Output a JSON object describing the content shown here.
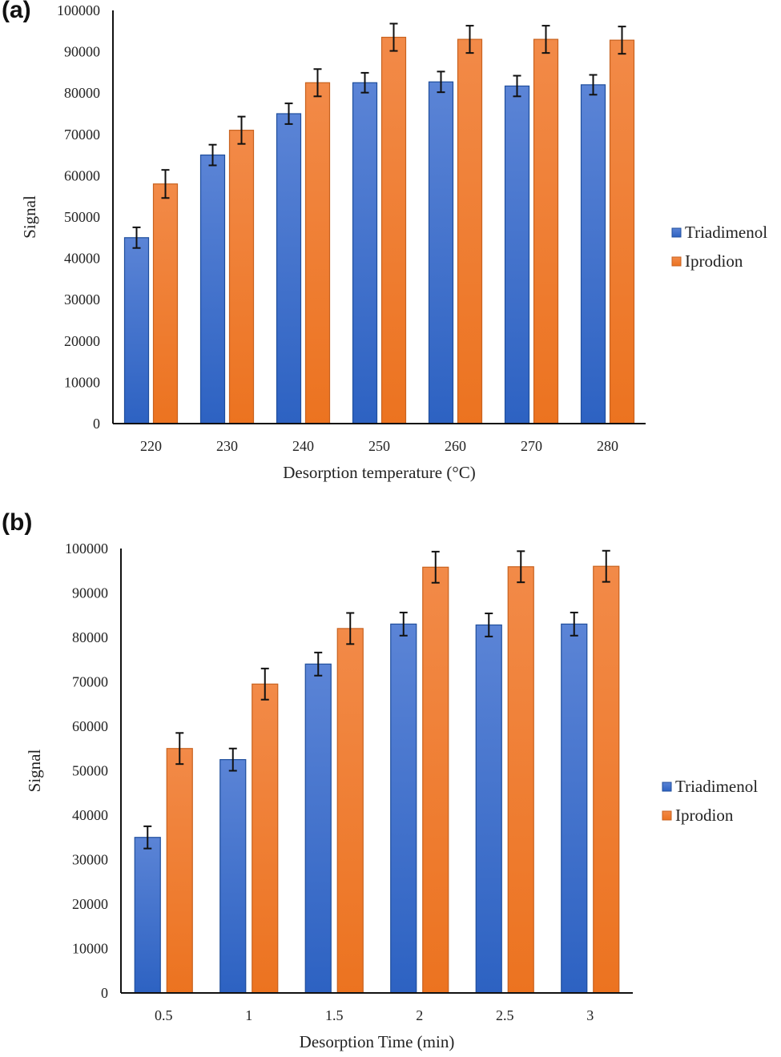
{
  "figure": {
    "panels": [
      "(a)",
      "(b)"
    ]
  },
  "chart_data": [
    {
      "type": "bar",
      "panel_label": "(a)",
      "title": "",
      "xlabel": "Desorption temperature (°C)",
      "ylabel": "Signal",
      "ylim": [
        0,
        100000
      ],
      "yticks": [
        0,
        10000,
        20000,
        30000,
        40000,
        50000,
        60000,
        70000,
        80000,
        90000,
        100000
      ],
      "categories": [
        "220",
        "230",
        "240",
        "250",
        "260",
        "270",
        "280"
      ],
      "series": [
        {
          "name": "Triadimenol",
          "color": "#4472C4",
          "values": [
            45000,
            65000,
            75000,
            82500,
            82700,
            81700,
            82000
          ],
          "errors": [
            2500,
            2500,
            2500,
            2400,
            2500,
            2500,
            2400
          ]
        },
        {
          "name": "Iprodion",
          "color": "#ED7D31",
          "values": [
            58000,
            71000,
            82500,
            93500,
            93000,
            93000,
            92800
          ],
          "errors": [
            3400,
            3300,
            3300,
            3300,
            3300,
            3300,
            3300
          ]
        }
      ],
      "grid": false,
      "legend": "right"
    },
    {
      "type": "bar",
      "panel_label": "(b)",
      "title": "",
      "xlabel": "Desorption Time (min)",
      "ylabel": "Signal",
      "ylim": [
        0,
        100000
      ],
      "yticks": [
        0,
        10000,
        20000,
        30000,
        40000,
        50000,
        60000,
        70000,
        80000,
        90000,
        100000
      ],
      "categories": [
        "0.5",
        "1",
        "1.5",
        "2",
        "2.5",
        "3"
      ],
      "series": [
        {
          "name": "Triadimenol",
          "color": "#4472C4",
          "values": [
            35000,
            52500,
            74000,
            83000,
            82800,
            83000
          ],
          "errors": [
            2500,
            2500,
            2600,
            2600,
            2600,
            2600
          ]
        },
        {
          "name": "Iprodion",
          "color": "#ED7D31",
          "values": [
            55000,
            69500,
            82000,
            95800,
            95900,
            96000
          ],
          "errors": [
            3500,
            3500,
            3500,
            3500,
            3500,
            3500
          ]
        }
      ],
      "grid": false,
      "legend": "right"
    }
  ]
}
